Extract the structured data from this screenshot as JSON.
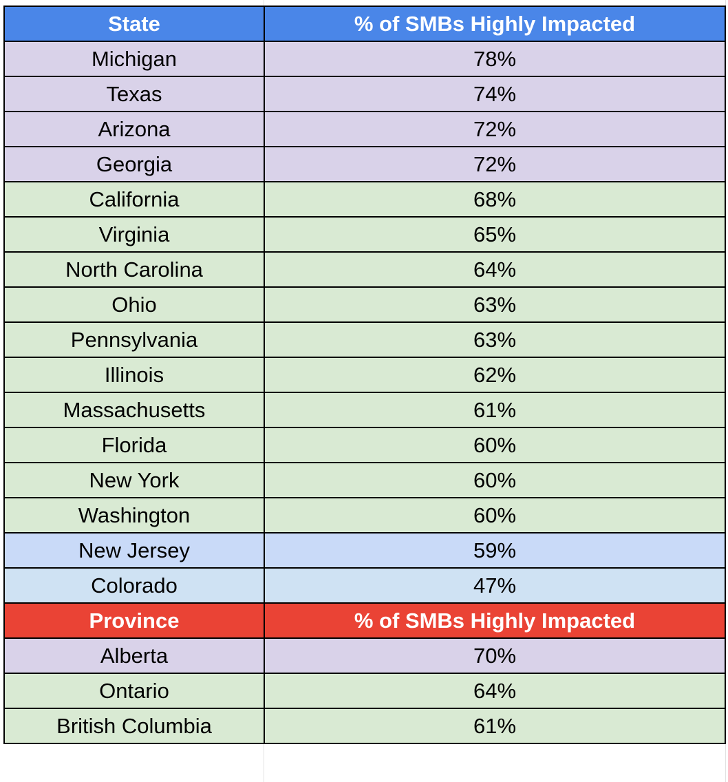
{
  "colors": {
    "header_blue": "#4a86e8",
    "header_red": "#ea4335",
    "purple_fill": "#d9d2e9",
    "green_fill": "#d9ead3",
    "light_blue_fill": "#c9daf8",
    "pale_blue_fill": "#cfe2f3",
    "border": "#000000"
  },
  "states_table": {
    "headers": [
      "State",
      "% of SMBs Highly Impacted"
    ],
    "rows": [
      {
        "name": "Michigan",
        "value": "78%",
        "band": "purple"
      },
      {
        "name": "Texas",
        "value": "74%",
        "band": "purple"
      },
      {
        "name": "Arizona",
        "value": "72%",
        "band": "purple"
      },
      {
        "name": "Georgia",
        "value": "72%",
        "band": "purple"
      },
      {
        "name": "California",
        "value": "68%",
        "band": "green"
      },
      {
        "name": "Virginia",
        "value": "65%",
        "band": "green"
      },
      {
        "name": "North Carolina",
        "value": "64%",
        "band": "green"
      },
      {
        "name": "Ohio",
        "value": "63%",
        "band": "green"
      },
      {
        "name": "Pennsylvania",
        "value": "63%",
        "band": "green"
      },
      {
        "name": "Illinois",
        "value": "62%",
        "band": "green"
      },
      {
        "name": "Massachusetts",
        "value": "61%",
        "band": "green"
      },
      {
        "name": "Florida",
        "value": "60%",
        "band": "green"
      },
      {
        "name": "New York",
        "value": "60%",
        "band": "green"
      },
      {
        "name": "Washington",
        "value": "60%",
        "band": "green"
      },
      {
        "name": "New Jersey",
        "value": "59%",
        "band": "lightblue"
      },
      {
        "name": "Colorado",
        "value": "47%",
        "band": "paleblue"
      }
    ]
  },
  "provinces_table": {
    "headers": [
      "Province",
      "% of SMBs Highly Impacted"
    ],
    "rows": [
      {
        "name": "Alberta",
        "value": "70%",
        "band": "purple"
      },
      {
        "name": "Ontario",
        "value": "64%",
        "band": "green"
      },
      {
        "name": "British Columbia",
        "value": "61%",
        "band": "green"
      }
    ]
  }
}
